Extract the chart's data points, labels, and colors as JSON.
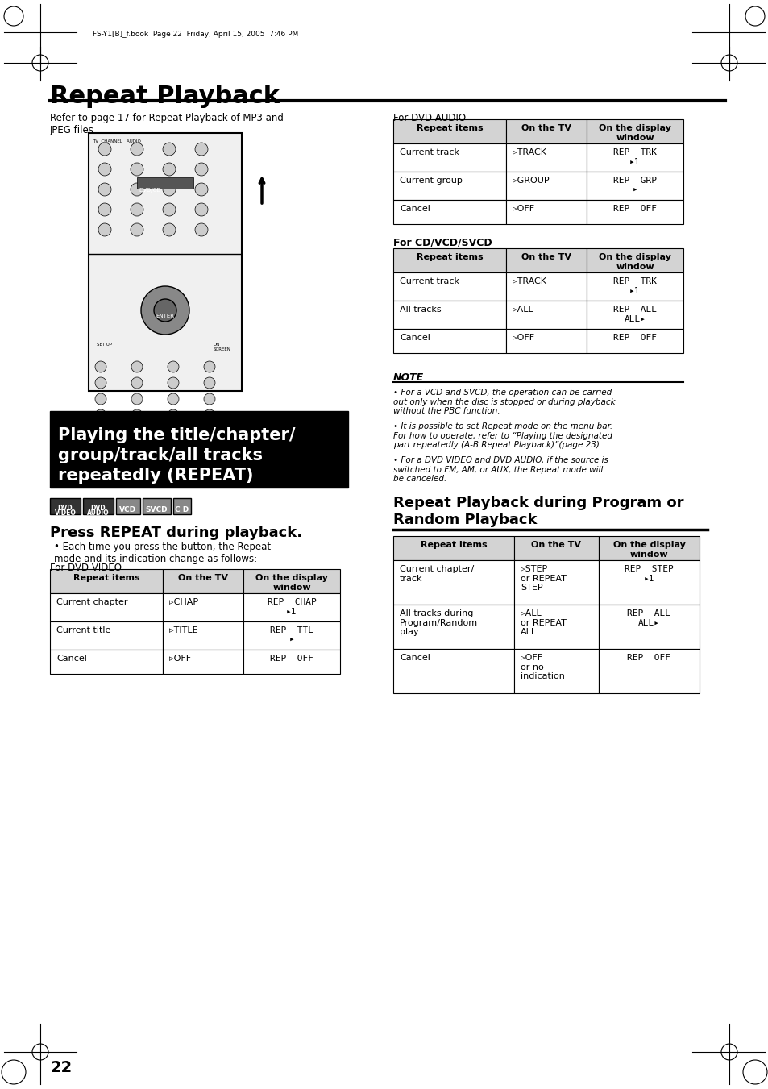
{
  "page_bg": "#ffffff",
  "header_text": "FS-Y1[B]_f.book  Page 22  Friday, April 15, 2005  7:46 PM",
  "title": "Repeat Playback",
  "title_underline": true,
  "refer_text": "Refer to page 17 for Repeat Playback of MP3 and\nJPEG files.",
  "black_box_lines": [
    "Playing the title/chapter/",
    "group/track/all tracks",
    "repeatedly (REPEAT)"
  ],
  "format_badges": [
    "DVD\nVIDEO",
    "DVD\nAUDIO",
    "VCD",
    "SVCD",
    "C D"
  ],
  "press_heading": "Press REPEAT during playback.",
  "press_bullet": "Each time you press the button, the Repeat\nmode and its indication change as follows:",
  "dvd_video_label": "For DVD VIDEO",
  "dvd_video_table": {
    "headers": [
      "Repeat items",
      "On the TV",
      "On the display\nwindow"
    ],
    "rows": [
      [
        "Current chapter",
        "▹CHAP",
        "REP  CHAP\n▸1"
      ],
      [
        "Current title",
        "▹TITLE",
        "REP  TTL\n▸"
      ],
      [
        "Cancel",
        "▹OFF",
        "REP  OFF"
      ]
    ]
  },
  "dvd_audio_label": "For DVD AUDIO",
  "dvd_audio_table": {
    "headers": [
      "Repeat items",
      "On the TV",
      "On the display\nwindow"
    ],
    "rows": [
      [
        "Current track",
        "▹TRACK",
        "REP  TRK\n▸1"
      ],
      [
        "Current group",
        "▹GROUP",
        "REP  GRP\n▸"
      ],
      [
        "Cancel",
        "▹OFF",
        "REP  OFF"
      ]
    ]
  },
  "cdvcd_label": "For CD/VCD/SVCD",
  "cdvcd_table": {
    "headers": [
      "Repeat items",
      "On the TV",
      "On the display\nwindow"
    ],
    "rows": [
      [
        "Current track",
        "▹TRACK",
        "REP  TRK\n▸1"
      ],
      [
        "All tracks",
        "▹ALL",
        "REP  ALL\nALL▸"
      ],
      [
        "Cancel",
        "▹OFF",
        "REP  OFF"
      ]
    ]
  },
  "note_heading": "NOTE",
  "note_bullets": [
    "For a VCD and SVCD, the operation can be carried\nout only when the disc is stopped or during playback\nwithout the PBC function.",
    "It is possible to set Repeat mode on the menu bar.\nFor how to operate, refer to “Playing the designated\npart repeatedly (A-B Repeat Playback)”(page 23).",
    "For a DVD VIDEO and DVD AUDIO, if the source is\nswitched to FM, AM, or AUX, the Repeat mode will\nbe canceled."
  ],
  "random_heading": "Repeat Playback during Program or\nRandom Playback",
  "random_table": {
    "headers": [
      "Repeat items",
      "On the TV",
      "On the display\nwindow"
    ],
    "rows": [
      [
        "Current chapter/\ntrack",
        "▹STEP\nor REPEAT\nSTEP",
        "REP  STEP\n▸1"
      ],
      [
        "All tracks during\nProgram/Random\nplay",
        "▹ALL\nor REPEAT\nALL",
        "REP  ALL\nALL▸"
      ],
      [
        "Cancel",
        "▹OFF\nor no\nindication",
        "REP  OFF"
      ]
    ]
  },
  "page_number": "22",
  "header_color": "#000000",
  "table_header_bg": "#d3d3d3",
  "table_border": "#000000",
  "black_box_bg": "#000000",
  "black_box_text": "#ffffff",
  "badge_bg_dark": "#333333",
  "badge_bg_light": "#aaaaaa"
}
